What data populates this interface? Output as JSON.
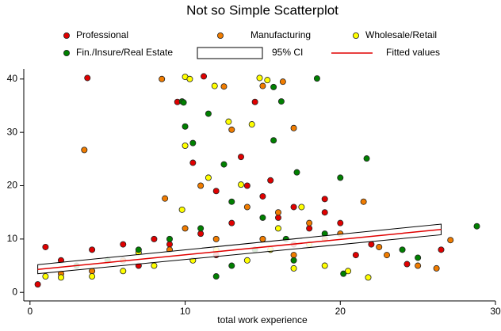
{
  "chart_data": {
    "type": "scatter",
    "title": "Not so Simple Scatterplot",
    "x_label": "total work experience",
    "xlim": [
      -0.4,
      30
    ],
    "ylim": [
      -1.6,
      41.9
    ],
    "xticks": [
      0,
      10,
      20,
      30
    ],
    "yticks": [
      0,
      10,
      20,
      30,
      40
    ],
    "series": [
      {
        "name": "Professional",
        "color": "#e00000",
        "x": [
          3.7,
          11.2,
          14.5,
          9.5,
          10.5,
          13.6,
          14,
          12,
          15,
          17,
          16,
          13,
          18,
          11,
          8,
          6,
          4,
          2,
          1,
          19,
          20,
          22,
          24.3,
          26.5,
          15.5,
          9,
          7,
          12,
          17,
          21,
          0.5,
          19
        ],
        "values": [
          40.2,
          40.5,
          35.7,
          35.7,
          24.3,
          25.4,
          20,
          19,
          18,
          16,
          14,
          13,
          12,
          11,
          10,
          9,
          8,
          6,
          8.5,
          15,
          13,
          9,
          5.3,
          8,
          21,
          9,
          5,
          7,
          9,
          7,
          1.5,
          17.5
        ]
      },
      {
        "name": "Manufacturing",
        "color": "#f07c00",
        "x": [
          3.5,
          8.5,
          12.5,
          15,
          16.3,
          17,
          13,
          8.7,
          11,
          14,
          16,
          18,
          20,
          19,
          21.5,
          22.5,
          25,
          27.1,
          26.2,
          10,
          12,
          6,
          4,
          2,
          15,
          17,
          9,
          23
        ],
        "values": [
          26.7,
          40,
          38.6,
          38.7,
          39.5,
          30.8,
          30.5,
          17.6,
          20,
          16,
          15,
          13,
          11,
          10,
          17,
          8.5,
          5,
          9.8,
          4.5,
          12,
          10,
          6,
          4,
          3.5,
          10,
          7,
          8,
          7
        ]
      },
      {
        "name": "Wholesale/Retail",
        "color": "#ffff00",
        "x": [
          10,
          10.3,
          11.9,
          14.8,
          15.3,
          12.8,
          14.3,
          10,
          13.6,
          11.5,
          9.8,
          17.5,
          16,
          18,
          12,
          14,
          8,
          6,
          4,
          2,
          1,
          19,
          20.5,
          21.8,
          7,
          10.5,
          15.5,
          17
        ],
        "values": [
          40.4,
          40,
          38.7,
          40.2,
          39.8,
          32,
          31.5,
          27.5,
          20.2,
          21.5,
          15.5,
          16,
          12,
          9,
          8,
          6,
          5,
          4,
          3,
          2.8,
          3,
          5,
          4,
          2.8,
          7.5,
          6,
          8,
          4.5
        ]
      },
      {
        "name": "Fin./Insure/Real Estate",
        "color": "#008000",
        "x": [
          9.8,
          9.9,
          15.7,
          16.2,
          18.5,
          10,
          11.5,
          15.7,
          10.5,
          17.2,
          12.5,
          20,
          21.7,
          28.8,
          13,
          15,
          11,
          9,
          7,
          5,
          3,
          24,
          25,
          19,
          17,
          13,
          12,
          20.2,
          14.5,
          16.5
        ],
        "values": [
          35.8,
          35.6,
          38.5,
          35.8,
          40.1,
          31.1,
          33.5,
          28.5,
          28,
          22.5,
          24,
          21.5,
          25.1,
          12.4,
          17,
          14,
          12,
          10,
          8,
          6,
          5,
          8,
          6.5,
          11,
          6,
          5,
          3,
          3.5,
          8,
          10
        ]
      }
    ],
    "ci": {
      "name": "95% CI",
      "x": [
        0.5,
        26.5
      ],
      "lower": [
        3.5,
        10.8
      ],
      "upper": [
        5.2,
        12.8
      ]
    },
    "fit": {
      "name": "Fitted values",
      "color": "#e00000",
      "x": [
        0.5,
        26.5
      ],
      "values": [
        4.3,
        11.8
      ]
    }
  }
}
